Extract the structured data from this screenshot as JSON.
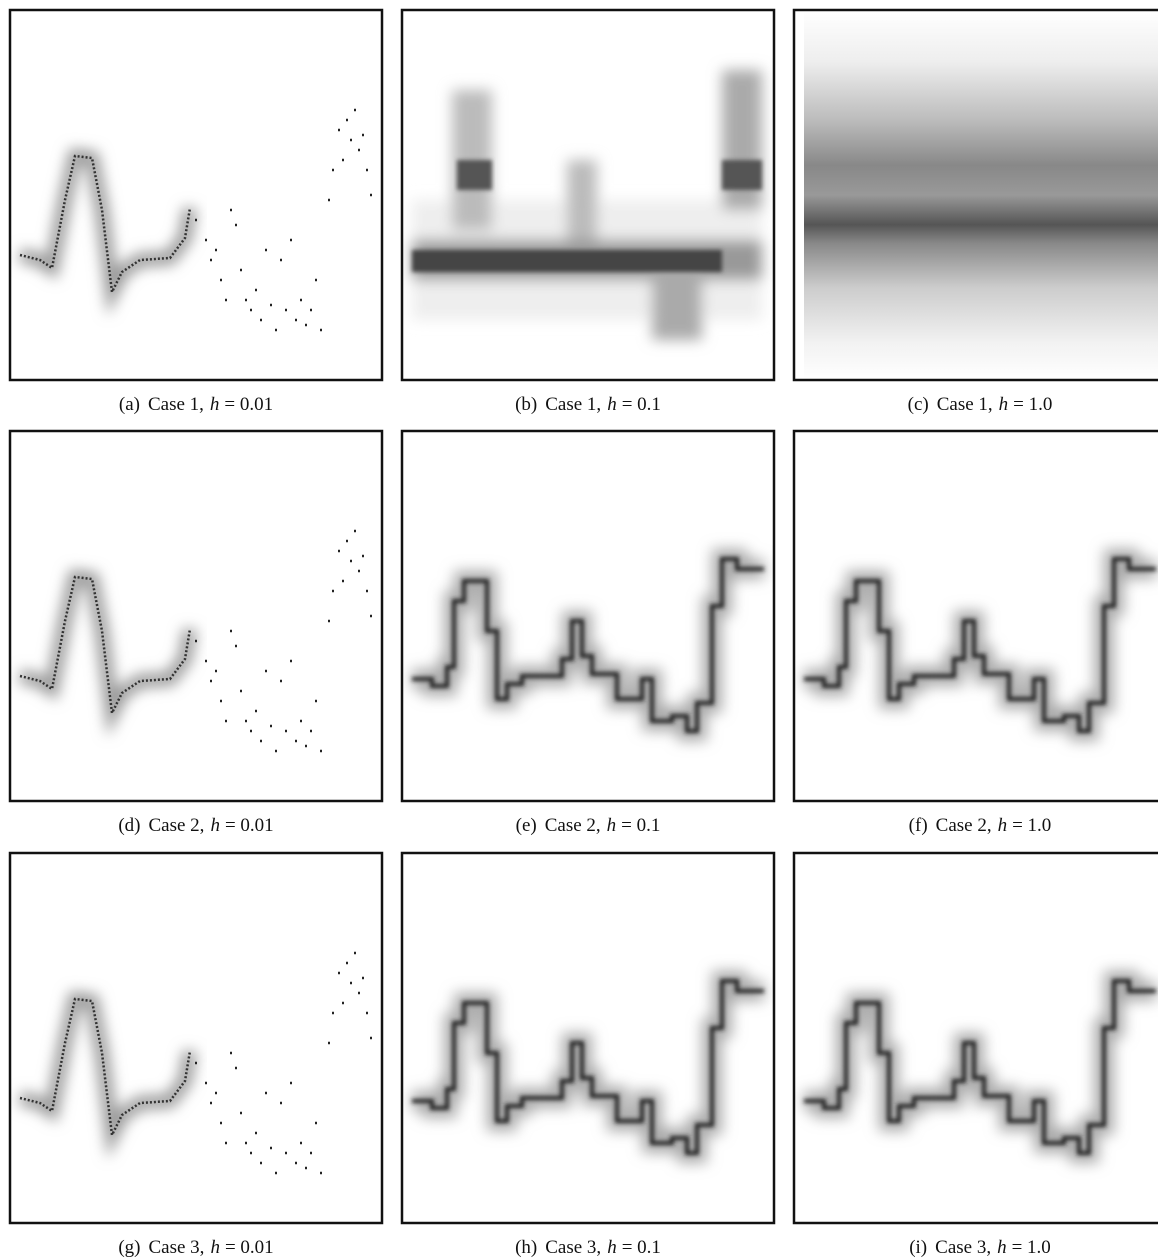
{
  "panels": [
    {
      "label": "(a)",
      "case": "Case 1,",
      "symbol": "h",
      "value": "= 0.01"
    },
    {
      "label": "(b)",
      "case": "Case 1,",
      "symbol": "h",
      "value": "= 0.1"
    },
    {
      "label": "(c)",
      "case": "Case 1,",
      "symbol": "h",
      "value": "= 1.0"
    },
    {
      "label": "(d)",
      "case": "Case 2,",
      "symbol": "h",
      "value": "= 0.01"
    },
    {
      "label": "(e)",
      "case": "Case 2,",
      "symbol": "h",
      "value": "= 0.1"
    },
    {
      "label": "(f)",
      "case": "Case 2,",
      "symbol": "h",
      "value": "= 1.0"
    },
    {
      "label": "(g)",
      "case": "Case 3,",
      "symbol": "h",
      "value": "= 0.01"
    },
    {
      "label": "(h)",
      "case": "Case 3,",
      "symbol": "h",
      "value": "= 0.1"
    },
    {
      "label": "(i)",
      "case": "Case 3,",
      "symbol": "h",
      "value": "= 1.0"
    }
  ]
}
